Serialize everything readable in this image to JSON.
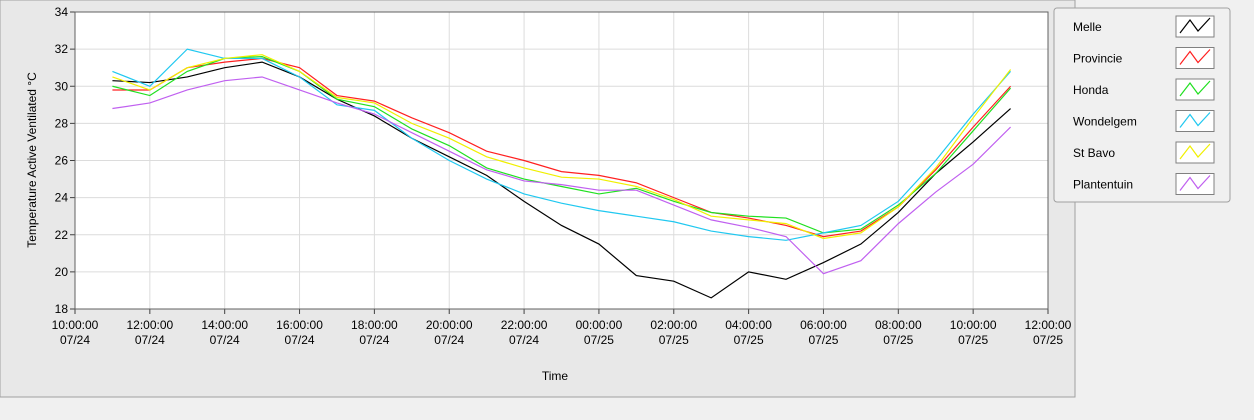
{
  "chart_data": {
    "type": "line",
    "xlabel": "Time",
    "ylabel": "Temperature Active Ventilated °C",
    "x": [
      11,
      12,
      13,
      14,
      15,
      16,
      17,
      18,
      19,
      20,
      21,
      22,
      23,
      24,
      25,
      26,
      27,
      28,
      29,
      30,
      31,
      32,
      33,
      34,
      35
    ],
    "xlim": [
      10,
      36
    ],
    "xticks": [
      {
        "value": 10,
        "label": "10:00:00\n07/24"
      },
      {
        "value": 12,
        "label": "12:00:00\n07/24"
      },
      {
        "value": 14,
        "label": "14:00:00\n07/24"
      },
      {
        "value": 16,
        "label": "16:00:00\n07/24"
      },
      {
        "value": 18,
        "label": "18:00:00\n07/24"
      },
      {
        "value": 20,
        "label": "20:00:00\n07/24"
      },
      {
        "value": 22,
        "label": "22:00:00\n07/24"
      },
      {
        "value": 24,
        "label": "00:00:00\n07/25"
      },
      {
        "value": 26,
        "label": "02:00:00\n07/25"
      },
      {
        "value": 28,
        "label": "04:00:00\n07/25"
      },
      {
        "value": 30,
        "label": "06:00:00\n07/25"
      },
      {
        "value": 32,
        "label": "08:00:00\n07/25"
      },
      {
        "value": 34,
        "label": "10:00:00\n07/25"
      },
      {
        "value": 36,
        "label": "12:00:00\n07/25"
      }
    ],
    "ylim": [
      18,
      34
    ],
    "yticks": [
      18,
      20,
      22,
      24,
      26,
      28,
      30,
      32,
      34
    ],
    "grid": true,
    "legend": "top-right",
    "series": [
      {
        "name": "Melle",
        "color": "#000000",
        "values": [
          30.3,
          30.2,
          30.5,
          31.0,
          31.3,
          30.5,
          29.3,
          28.4,
          27.2,
          26.2,
          25.2,
          23.8,
          22.5,
          21.5,
          19.8,
          19.5,
          18.6,
          20.0,
          19.6,
          20.5,
          21.5,
          23.2,
          25.3,
          27.0,
          28.8
        ]
      },
      {
        "name": "Provincie",
        "color": "#ff2020",
        "values": [
          29.8,
          29.8,
          31.0,
          31.3,
          31.5,
          31.0,
          29.5,
          29.2,
          28.3,
          27.5,
          26.5,
          26.0,
          25.4,
          25.2,
          24.8,
          24.0,
          23.2,
          22.9,
          22.5,
          21.9,
          22.2,
          23.5,
          25.5,
          27.8,
          30.0
        ]
      },
      {
        "name": "Honda",
        "color": "#20e020",
        "values": [
          30.0,
          29.5,
          30.8,
          31.5,
          31.6,
          30.8,
          29.3,
          28.9,
          27.7,
          26.8,
          25.6,
          25.0,
          24.6,
          24.2,
          24.5,
          23.8,
          23.2,
          23.0,
          22.9,
          22.1,
          22.3,
          23.6,
          25.3,
          27.6,
          29.9
        ]
      },
      {
        "name": "Wondelgem",
        "color": "#20c8f0",
        "values": [
          30.8,
          30.0,
          32.0,
          31.5,
          31.5,
          30.5,
          29.0,
          28.7,
          27.2,
          26.0,
          25.0,
          24.2,
          23.7,
          23.3,
          23.0,
          22.7,
          22.2,
          21.9,
          21.7,
          22.1,
          22.5,
          23.8,
          26.0,
          28.5,
          30.8
        ]
      },
      {
        "name": "St Bavo",
        "color": "#f0f000",
        "values": [
          30.5,
          29.8,
          31.0,
          31.5,
          31.7,
          30.8,
          29.4,
          29.1,
          28.0,
          27.2,
          26.2,
          25.6,
          25.1,
          25.0,
          24.6,
          23.9,
          23.0,
          22.8,
          22.6,
          21.8,
          22.1,
          23.5,
          25.6,
          28.3,
          30.9
        ]
      },
      {
        "name": "Plantentuin",
        "color": "#c060f0",
        "values": [
          28.8,
          29.1,
          29.8,
          30.3,
          30.5,
          29.8,
          29.1,
          28.5,
          27.5,
          26.5,
          25.5,
          24.9,
          24.7,
          24.4,
          24.4,
          23.6,
          22.8,
          22.4,
          21.9,
          19.9,
          20.6,
          22.6,
          24.3,
          25.8,
          27.8
        ]
      }
    ]
  }
}
